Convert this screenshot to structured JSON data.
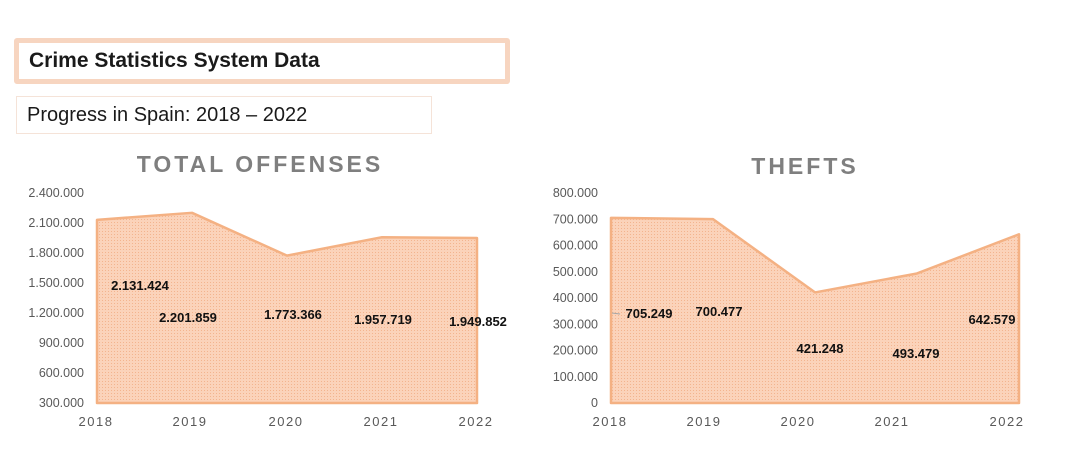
{
  "header": {
    "title": "Crime Statistics System Data",
    "subtitle": "Progress in Spain: 2018 – 2022"
  },
  "colors": {
    "fill": "#f9c9aa",
    "edge": "#f4b183",
    "title_border": "#f7d5c0"
  },
  "chart_data": [
    {
      "type": "area",
      "title": "TOTAL OFFENSES",
      "categories": [
        "2018",
        "2019",
        "2020",
        "2021",
        "2022"
      ],
      "values": [
        2131424,
        2201859,
        1773366,
        1957719,
        1949852
      ],
      "data_labels": [
        "2.131.424",
        "2.201.859",
        "1.773.366",
        "1.957.719",
        "1.949.852"
      ],
      "ylim": [
        300000,
        2400000
      ],
      "yticks": [
        "300.000",
        "600.000",
        "900.000",
        "1.200.000",
        "1.500.000",
        "1.800.000",
        "2.100.000",
        "2.400.000"
      ],
      "grid": false,
      "legend": "none"
    },
    {
      "type": "area",
      "title": "THEFTS",
      "categories": [
        "2018",
        "2019",
        "2020",
        "2021",
        "2022"
      ],
      "values": [
        705249,
        700477,
        421248,
        493479,
        642579
      ],
      "data_labels": [
        "705.249",
        "700.477",
        "421.248",
        "493.479",
        "642.579"
      ],
      "ylim": [
        0,
        800000
      ],
      "yticks": [
        "0",
        "100.000",
        "200.000",
        "300.000",
        "400.000",
        "500.000",
        "600.000",
        "700.000",
        "800.000"
      ],
      "grid": false,
      "legend": "none"
    }
  ]
}
